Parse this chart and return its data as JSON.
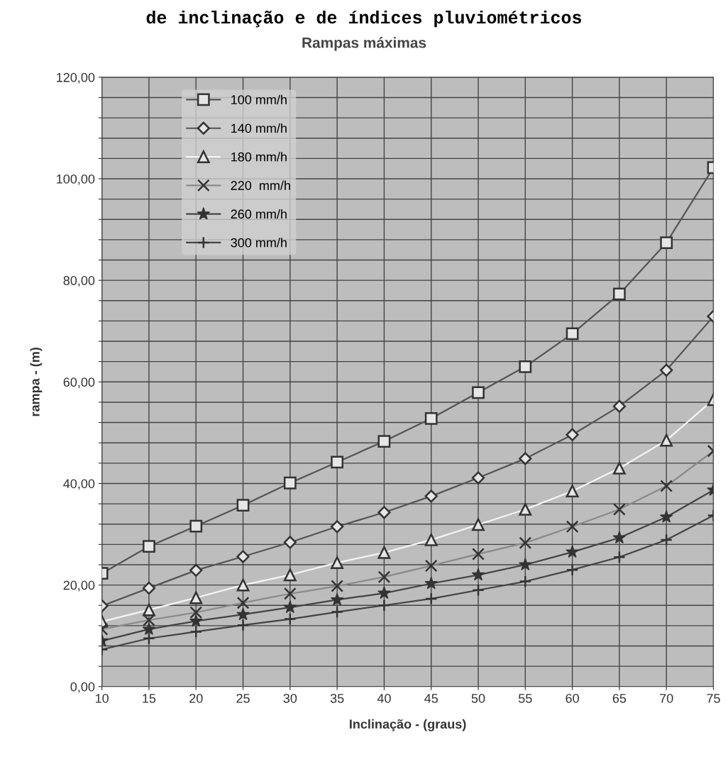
{
  "chart_data": {
    "type": "line",
    "title": "de inclinação e de índices pluviométricos",
    "subtitle": "Rampas máximas",
    "xlabel": "Inclinação - (graus)",
    "ylabel": "rampa - (m)",
    "x": [
      10,
      15,
      20,
      25,
      30,
      35,
      40,
      45,
      50,
      55,
      60,
      65,
      70,
      75
    ],
    "series": [
      {
        "name": "100 mm/h",
        "color": "#555555",
        "marker": "square",
        "values": [
          22.3,
          27.6,
          31.6,
          35.7,
          40.1,
          44.2,
          48.3,
          52.8,
          57.9,
          63.0,
          69.5,
          77.3,
          87.4,
          102.2
        ]
      },
      {
        "name": "140 mm/h",
        "color": "#555555",
        "marker": "diamond",
        "values": [
          15.9,
          19.4,
          22.9,
          25.6,
          28.4,
          31.5,
          34.3,
          37.5,
          41.1,
          44.9,
          49.6,
          55.2,
          62.3,
          72.9
        ]
      },
      {
        "name": "180 mm/h",
        "color": "#f5f5f5",
        "marker": "triangle",
        "values": [
          12.8,
          15.1,
          17.5,
          20.0,
          22.0,
          24.4,
          26.4,
          28.9,
          31.9,
          34.9,
          38.5,
          43.0,
          48.5,
          56.5
        ]
      },
      {
        "name": "220  mm/h",
        "color": "#8a8a8a",
        "marker": "cross",
        "values": [
          11.3,
          13.1,
          14.6,
          16.5,
          18.3,
          19.8,
          21.6,
          23.8,
          26.1,
          28.3,
          31.5,
          34.9,
          39.5,
          46.4
        ]
      },
      {
        "name": "260 mm/h",
        "color": "#444444",
        "marker": "star",
        "values": [
          9.0,
          11.3,
          12.9,
          14.2,
          15.6,
          17.1,
          18.4,
          20.3,
          22.0,
          24.0,
          26.5,
          29.3,
          33.4,
          38.7
        ]
      },
      {
        "name": "300 mm/h",
        "color": "#444444",
        "marker": "plus",
        "values": [
          7.3,
          9.5,
          10.8,
          12.1,
          13.3,
          14.7,
          16.0,
          17.3,
          19.0,
          20.7,
          23.0,
          25.5,
          28.9,
          33.7
        ]
      }
    ],
    "xlim": [
      10,
      75
    ],
    "xticks": [
      10,
      15,
      20,
      25,
      30,
      35,
      40,
      45,
      50,
      55,
      60,
      65,
      70,
      75
    ],
    "ylim": [
      0,
      120
    ],
    "yticks": [
      {
        "value": 0,
        "label": "0,00"
      },
      {
        "value": 4,
        "label": null
      },
      {
        "value": 8,
        "label": null
      },
      {
        "value": 12,
        "label": null
      },
      {
        "value": 16,
        "label": null
      },
      {
        "value": 20,
        "label": "20,00"
      },
      {
        "value": 24,
        "label": null
      },
      {
        "value": 28,
        "label": null
      },
      {
        "value": 32,
        "label": null
      },
      {
        "value": 36,
        "label": null
      },
      {
        "value": 40,
        "label": "40,00"
      },
      {
        "value": 44,
        "label": null
      },
      {
        "value": 48,
        "label": null
      },
      {
        "value": 52,
        "label": null
      },
      {
        "value": 56,
        "label": null
      },
      {
        "value": 60,
        "label": "60,00"
      },
      {
        "value": 64,
        "label": null
      },
      {
        "value": 68,
        "label": null
      },
      {
        "value": 72,
        "label": null
      },
      {
        "value": 76,
        "label": null
      },
      {
        "value": 80,
        "label": "80,00"
      },
      {
        "value": 84,
        "label": null
      },
      {
        "value": 88,
        "label": null
      },
      {
        "value": 92,
        "label": null
      },
      {
        "value": 96,
        "label": null
      },
      {
        "value": 100,
        "label": "100,00"
      },
      {
        "value": 104,
        "label": null
      },
      {
        "value": 108,
        "label": null
      },
      {
        "value": 112,
        "label": null
      },
      {
        "value": 116,
        "label": null
      },
      {
        "value": 120,
        "label": "120,00"
      }
    ],
    "grid": true,
    "legend": "top left",
    "line_style": "solid"
  }
}
